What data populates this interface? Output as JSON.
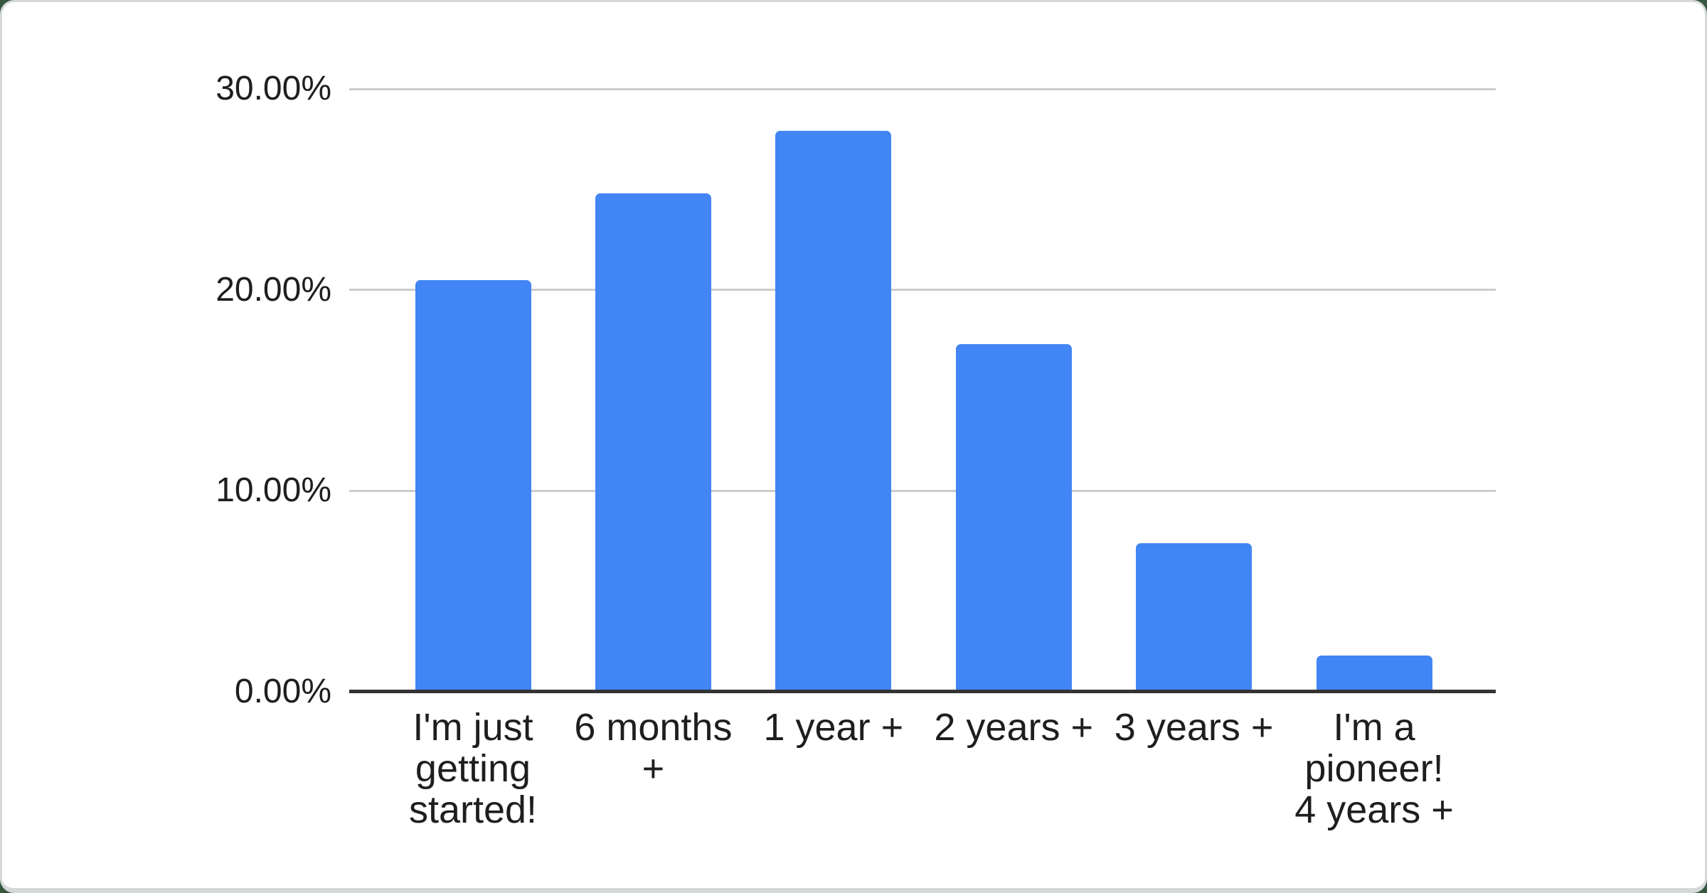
{
  "chart_data": {
    "type": "bar",
    "title": "",
    "xlabel": "",
    "ylabel": "",
    "legend_position": "none",
    "grid": true,
    "categories": [
      "I'm just getting started!",
      "6 months +",
      "1 year +",
      "2 years +",
      "3 years +",
      "I'm a pioneer! 4 years +"
    ],
    "categories_wrapped": [
      [
        "I'm just",
        "getting",
        "started!"
      ],
      [
        "6 months",
        "+"
      ],
      [
        "1 year +"
      ],
      [
        "2 years +"
      ],
      [
        "3 years +"
      ],
      [
        "I'm a",
        "pioneer!",
        "4 years +"
      ]
    ],
    "values": [
      20.5,
      24.8,
      27.9,
      17.3,
      7.4,
      1.8
    ],
    "value_unit": "%",
    "ylim": [
      0,
      30
    ],
    "yticks": [
      {
        "value": 0,
        "label": "0.00%"
      },
      {
        "value": 10,
        "label": "10.00%"
      },
      {
        "value": 20,
        "label": "20.00%"
      },
      {
        "value": 30,
        "label": "30.00%"
      }
    ],
    "colors": {
      "bar": "#4285f4",
      "gridline": "#cccccc",
      "axis_line": "#333333",
      "text": "#1e1e1e",
      "card_background": "#ffffff",
      "card_border": "#d6d9da",
      "page_background": "#35573f"
    }
  }
}
